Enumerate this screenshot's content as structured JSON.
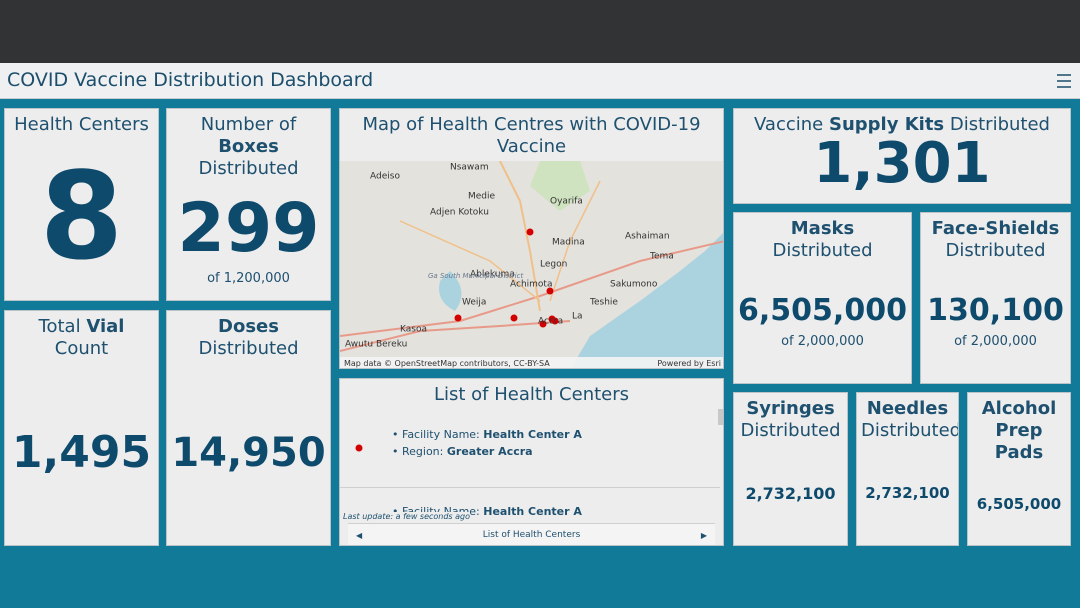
{
  "header": {
    "title": "COVID Vaccine Distribution Dashboard"
  },
  "panels": [
    {
      "title": [
        {
          "text": "Health Centers"
        }
      ],
      "value": "8"
    },
    {
      "title": [
        {
          "text": "Number of"
        },
        {
          "text": "Boxes",
          "bold": true
        },
        {
          "text": "Distributed"
        }
      ],
      "value": "299",
      "subtitle": "of 1,200,000"
    },
    {
      "title": [
        {
          "text": "Total"
        },
        {
          "text": "Vial",
          "bold": true
        },
        {
          "text": "Count"
        }
      ],
      "value": "1,495"
    },
    {
      "title": [
        {
          "text": "Doses",
          "bold": true
        },
        {
          "text": "Distributed"
        }
      ],
      "value": "14,950"
    },
    {
      "title": [
        {
          "text": "Vaccine"
        },
        {
          "text": "Supply Kits",
          "bold": true
        },
        {
          "text": "Distributed"
        }
      ],
      "value": "1,301"
    },
    {
      "title": [
        {
          "text": "Masks",
          "bold": true
        },
        {
          "text": "Distributed"
        }
      ],
      "value": "6,505,000",
      "subtitle": "of 2,000,000"
    },
    {
      "title": [
        {
          "text": "Face-Shields",
          "bold": true
        },
        {
          "text": "Distributed"
        }
      ],
      "value": "130,100",
      "subtitle": "of 2,000,000"
    },
    {
      "title": [
        {
          "text": "Syringes",
          "bold": true
        },
        {
          "text": "Distributed"
        }
      ],
      "value": "2,732,100"
    },
    {
      "title": [
        {
          "text": "Needles",
          "bold": true
        },
        {
          "text": "Distributed"
        }
      ],
      "value": "2,732,100"
    },
    {
      "title": [
        {
          "text": "Alcohol Prep Pads",
          "bold": true
        }
      ],
      "value": "6,505,000"
    }
  ],
  "map": {
    "title": "Map of Health Centres with COVID-19 Vaccine",
    "labels": [
      "Nsawam",
      "Adeiso",
      "Medie",
      "Oyarifa",
      "Adjen Kotoku",
      "Madina",
      "Ashaiman",
      "Tema",
      "Legon",
      "Ablekuma",
      "Achimota",
      "Sakumono",
      "Teshie",
      "Weija",
      "Kasoa",
      "Awutu Bereku",
      "Accra",
      "La",
      "Ga South Municipal District"
    ],
    "attribution": "Map data © OpenStreetMap contributors, CC-BY-SA",
    "powered_by": "Powered by Esri"
  },
  "list": {
    "title": "List of Health Centers",
    "items": [
      {
        "facility_label": "Facility Name:",
        "facility": "Health Center A",
        "region_label": "Region:",
        "region": "Greater Accra"
      },
      {
        "facility_label": "Facility Name:",
        "facility": "Health Center A"
      }
    ],
    "last_update": "Last update: a few seconds ago",
    "footer": "List of Health Centers"
  }
}
